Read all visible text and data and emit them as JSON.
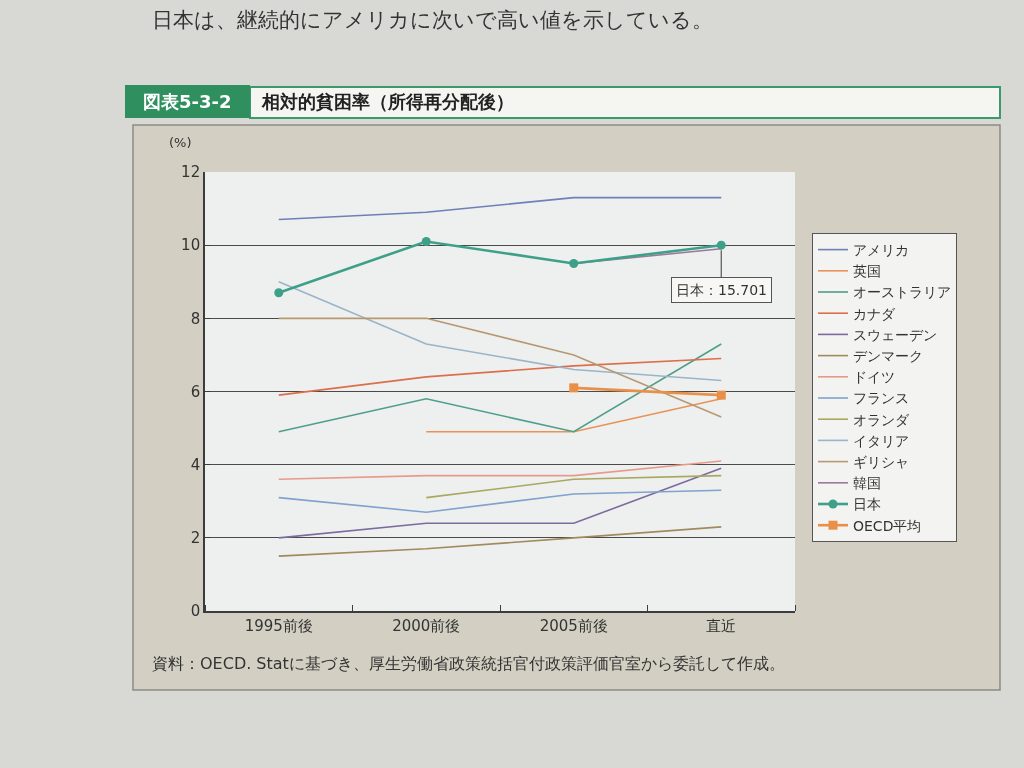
{
  "chart_data": {
    "type": "line",
    "title": "相対的貧困率（所得再分配後）",
    "ylabel": "(%)",
    "categories": [
      "1995前後",
      "2000前後",
      "2005前後",
      "直近"
    ],
    "ylim": [
      0,
      12
    ],
    "yticks": [
      0,
      2,
      4,
      6,
      8,
      10,
      12
    ],
    "grid": "y",
    "legend": "right",
    "marker": "none",
    "series": [
      {
        "name": "アメリカ",
        "color": "#6f7fb8",
        "values": [
          10.7,
          10.9,
          11.3,
          11.3
        ]
      },
      {
        "name": "英国",
        "color": "#e8925a",
        "values": [
          null,
          4.9,
          4.9,
          5.8
        ]
      },
      {
        "name": "オーストラリア",
        "color": "#4f9e8c",
        "values": [
          4.9,
          5.8,
          4.9,
          7.3
        ]
      },
      {
        "name": "カナダ",
        "color": "#dd6e4a",
        "values": [
          5.9,
          6.4,
          6.7,
          6.9
        ]
      },
      {
        "name": "スウェーデン",
        "color": "#7d6a9e",
        "values": [
          2.0,
          2.4,
          2.4,
          3.9
        ]
      },
      {
        "name": "デンマーク",
        "color": "#a08a5e",
        "values": [
          1.5,
          1.7,
          2.0,
          2.3
        ]
      },
      {
        "name": "ドイツ",
        "color": "#e89a8a",
        "values": [
          3.6,
          3.7,
          3.7,
          4.1
        ]
      },
      {
        "name": "フランス",
        "color": "#7fa3cc",
        "values": [
          3.1,
          2.7,
          3.2,
          3.3
        ]
      },
      {
        "name": "オランダ",
        "color": "#a8a860",
        "values": [
          null,
          3.1,
          3.6,
          3.7
        ]
      },
      {
        "name": "イタリア",
        "color": "#9ab4c8",
        "values": [
          9.0,
          7.3,
          6.6,
          6.3
        ]
      },
      {
        "name": "ギリシャ",
        "color": "#b89870",
        "values": [
          8.0,
          8.0,
          7.0,
          5.3
        ]
      },
      {
        "name": "韓国",
        "color": "#9a7a9a",
        "values": [
          null,
          null,
          9.5,
          9.9
        ]
      },
      {
        "name": "日本",
        "color": "#3fa08a",
        "marker": "circle",
        "values": [
          8.7,
          10.1,
          9.5,
          10.0
        ]
      },
      {
        "name": "OECD平均",
        "color": "#e8904a",
        "marker": "square",
        "values": [
          null,
          null,
          6.1,
          5.9
        ]
      }
    ],
    "annotations": [
      "日本は、継続的にアメリカに次いで高い値を示している。",
      "図表5-3-2",
      "資料：OECD. Statに基づき、厚生労働省政策統括官付政策評価官室から委託して作成。",
      {
        "text": "日本：15.701",
        "x": "直近",
        "y": 10.0
      }
    ]
  }
}
